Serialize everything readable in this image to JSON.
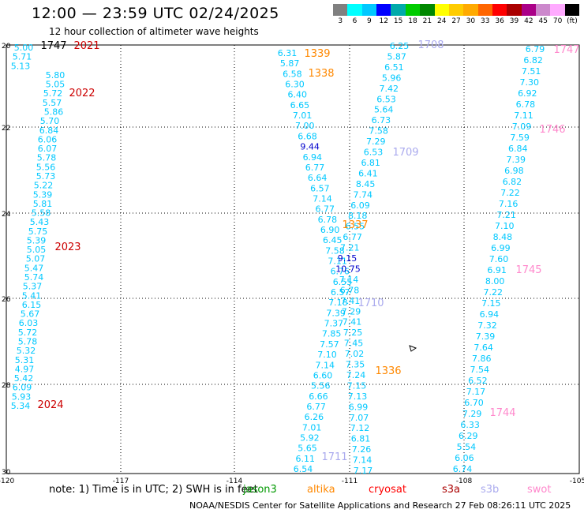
{
  "header": {
    "title": "12:00 — 23:59 UTC 02/24/2025",
    "subtitle": "12 hour collection of altimeter wave heights"
  },
  "color_scale": {
    "colors": [
      "#808080",
      "#00ffff",
      "#00c8ff",
      "#0000ff",
      "#00aaaa",
      "#00cc00",
      "#008800",
      "#ffff00",
      "#ffcc00",
      "#ffaa00",
      "#ff6600",
      "#ff0000",
      "#aa0000",
      "#aa0088",
      "#cc88cc",
      "#ffaaff",
      "#000000"
    ],
    "labels": [
      "3",
      "6",
      "9",
      "12",
      "15",
      "18",
      "21",
      "24",
      "27",
      "30",
      "33",
      "36",
      "39",
      "42",
      "45",
      "70",
      "(ft)"
    ]
  },
  "axes": {
    "lat_ticks": [
      "20",
      "22",
      "24",
      "26",
      "28",
      "30"
    ],
    "lon_ticks": [
      "-120",
      "-117",
      "-114",
      "-111",
      "-108",
      "-105"
    ]
  },
  "tracks": [
    {
      "name": "track-a",
      "color": "#00c8ff",
      "values": [
        "5.00",
        "5.71",
        "5.13",
        "5.80",
        "5.05",
        "5.72",
        "5.57",
        "5.86",
        "5.70",
        "6.84",
        "6.06",
        "6.07",
        "5.78",
        "5.56",
        "5.73",
        "5.22",
        "5.39",
        "5.81",
        "5.58",
        "5.43",
        "5.75",
        "5.39",
        "5.05",
        "5.07",
        "5.47",
        "5.74",
        "5.37",
        "5.41",
        "6.15",
        "5.67",
        "6.03",
        "5.72",
        "5.78",
        "5.32",
        "5.31",
        "4.97",
        "5.42",
        "6.09",
        "5.93",
        "5.34"
      ]
    },
    {
      "name": "track-b",
      "color": "#00c8ff",
      "values": [
        "6.31",
        "5.87",
        "6.58",
        "6.30",
        "6.40",
        "6.65",
        "7.01",
        "7.00",
        "6.68",
        "9.44",
        "6.94",
        "6.77",
        "6.64",
        "6.57",
        "7.14",
        "6.77",
        "6.78",
        "6.90",
        "6.45",
        "7.58",
        "7.11",
        "6.76",
        "6.55",
        "6.57",
        "7.18",
        "7.39",
        "7.37",
        "7.85",
        "7.57",
        "7.10",
        "7.14",
        "6.60",
        "5.56",
        "6.66",
        "6.77",
        "6.26",
        "7.01",
        "5.92",
        "5.65",
        "6.11",
        "6.54"
      ]
    },
    {
      "name": "track-c",
      "color": "#00c8ff",
      "values": [
        "6.25",
        "5.87",
        "6.51",
        "5.96",
        "7.42",
        "6.53",
        "5.64",
        "6.73",
        "7.58",
        "7.29",
        "6.53",
        "6.81",
        "6.41",
        "8.45",
        "7.74",
        "6.09",
        "8.18",
        "6.55",
        "6.77",
        "7.21",
        "9.15",
        "10.75",
        "7.14",
        "6.78",
        "7.41",
        "7.29",
        "7.41",
        "7.25",
        "7.45",
        "7.02",
        "7.35",
        "7.24",
        "7.15",
        "7.13",
        "6.99",
        "7.07",
        "7.12",
        "6.81",
        "7.26",
        "7.14",
        "7.17"
      ]
    },
    {
      "name": "track-d",
      "color": "#00c8ff",
      "values": [
        "6.79",
        "6.82",
        "7.51",
        "7.30",
        "6.92",
        "6.78",
        "7.11",
        "7.09",
        "7.59",
        "6.84",
        "7.39",
        "6.98",
        "6.82",
        "7.22",
        "7.16",
        "7.21",
        "7.10",
        "8.48",
        "6.99",
        "7.60",
        "6.91",
        "8.00",
        "7.22",
        "7.15",
        "6.94",
        "7.32",
        "7.39",
        "7.64",
        "7.86",
        "7.54",
        "6.52",
        "7.17",
        "6.70",
        "7.29",
        "6.33",
        "6.29",
        "5.54",
        "6.06",
        "6.74"
      ]
    }
  ],
  "pass_labels": [
    {
      "text": "1747",
      "color": "#000000"
    },
    {
      "text": "2021",
      "color": "#cc0000"
    },
    {
      "text": "2022",
      "color": "#cc0000"
    },
    {
      "text": "2023",
      "color": "#cc0000"
    },
    {
      "text": "2024",
      "color": "#cc0000"
    },
    {
      "text": "1339",
      "color": "#ff8800"
    },
    {
      "text": "1338",
      "color": "#ff8800"
    },
    {
      "text": "1337",
      "color": "#ff8800"
    },
    {
      "text": "1336",
      "color": "#ff8800"
    },
    {
      "text": "1708",
      "color": "#aaaaee"
    },
    {
      "text": "1709",
      "color": "#aaaaee"
    },
    {
      "text": "1710",
      "color": "#aaaaee"
    },
    {
      "text": "1711",
      "color": "#aaaaee"
    },
    {
      "text": "1747",
      "color": "#ff88cc"
    },
    {
      "text": "1746",
      "color": "#ff88cc"
    },
    {
      "text": "1745",
      "color": "#ff88cc"
    },
    {
      "text": "1744",
      "color": "#ff88cc"
    }
  ],
  "footer": {
    "note": "note:  1) Time is in UTC; 2) SWH is in feet",
    "satellites": [
      {
        "name": "jason3",
        "color": "#009900"
      },
      {
        "name": "altika",
        "color": "#ff8800"
      },
      {
        "name": "cryosat",
        "color": "#ff0000"
      },
      {
        "name": "s3a",
        "color": "#aa0000"
      },
      {
        "name": "s3b",
        "color": "#aaaaee"
      },
      {
        "name": "swot",
        "color": "#ff88cc"
      }
    ],
    "credit": "NOAA/NESDIS Center for Satellite Applications and Research    27 Feb 08:26:11 UTC 2025"
  }
}
